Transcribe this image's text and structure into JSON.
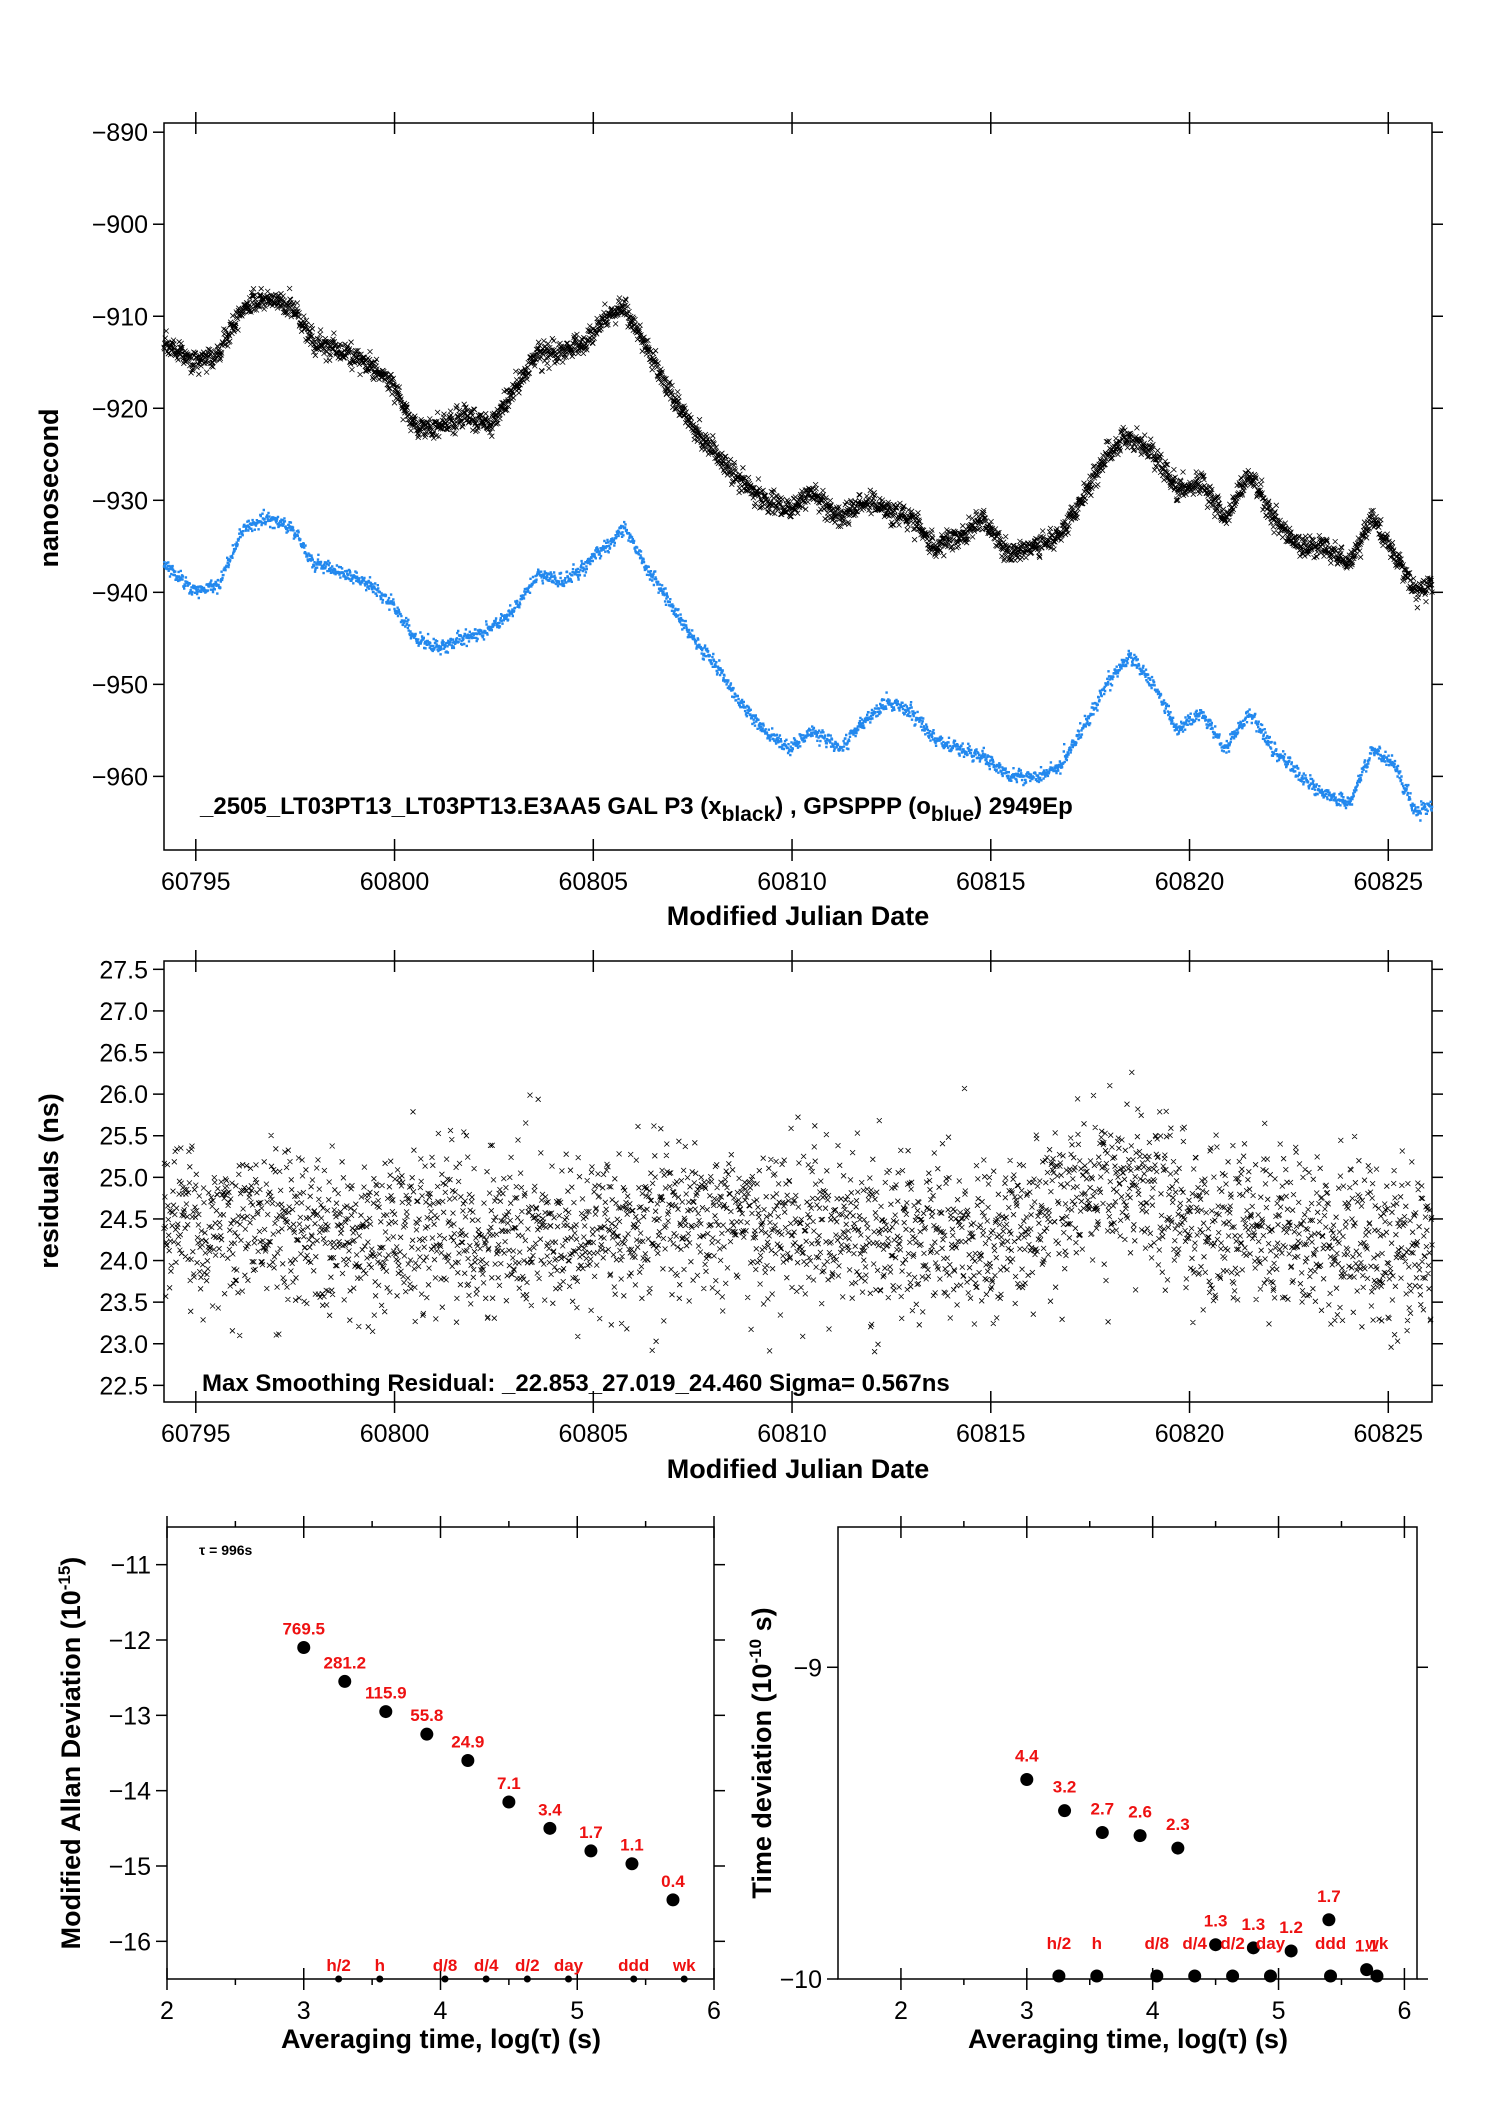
{
  "chart_data": [
    {
      "type": "scatter",
      "xlabel": "Modified Julian Date",
      "ylabel": "nanosecond",
      "xlim": [
        60794.2,
        60826.1
      ],
      "ylim": [
        -968,
        -889
      ],
      "xticks": [
        60795,
        60800,
        60805,
        60810,
        60815,
        60820,
        60825
      ],
      "yticks": [
        -890,
        -900,
        -910,
        -920,
        -930,
        -940,
        -950,
        -960
      ],
      "caption": {
        "prefix": "_2505_LT03PT13_LT03PT13.E3AA5    GAL P3 (x",
        "sub1": "black",
        "mid": ") ,  GPSPPP (o",
        "sub2": "blue",
        "suffix": ")  2949Ep"
      },
      "series": [
        {
          "marker": "x",
          "color": "#000000",
          "x": [
            60794.2,
            60795,
            60795.6,
            60796.2,
            60796.8,
            60797.4,
            60798,
            60798.7,
            60799.3,
            60799.9,
            60800.5,
            60801.1,
            60801.8,
            60802.4,
            60803,
            60803.6,
            60804.2,
            60804.8,
            60805.3,
            60805.8,
            60806.3,
            60806.9,
            60807.5,
            60808.1,
            60808.7,
            60809.3,
            60809.9,
            60810.5,
            60811.2,
            60811.8,
            60812.4,
            60813,
            60813.6,
            60814.2,
            60814.8,
            60815.5,
            60816.1,
            60816.7,
            60817.3,
            60817.9,
            60818.5,
            60819.1,
            60819.7,
            60820.3,
            60820.9,
            60821.5,
            60822.1,
            60822.8,
            60823.4,
            60824,
            60824.6,
            60825.2,
            60825.7,
            60826.1
          ],
          "y": [
            -913,
            -915,
            -914,
            -909,
            -908,
            -909,
            -913,
            -914,
            -915,
            -917,
            -922,
            -922,
            -921,
            -922,
            -918,
            -914,
            -914,
            -913,
            -910,
            -909,
            -913,
            -918,
            -922,
            -925,
            -928,
            -930,
            -931,
            -929,
            -932,
            -930,
            -931,
            -932,
            -935,
            -934,
            -932,
            -936,
            -935,
            -934,
            -930,
            -925,
            -923,
            -925,
            -929,
            -928,
            -932,
            -927,
            -932,
            -935,
            -935,
            -937,
            -932,
            -936,
            -940,
            -939
          ]
        },
        {
          "marker": "o",
          "color": "#2288ee",
          "x": [
            60794.2,
            60795,
            60795.6,
            60796.2,
            60796.8,
            60797.4,
            60798,
            60798.7,
            60799.3,
            60799.9,
            60800.5,
            60801.1,
            60801.8,
            60802.4,
            60803,
            60803.6,
            60804.2,
            60804.8,
            60805.3,
            60805.8,
            60806.3,
            60806.9,
            60807.5,
            60808.1,
            60808.7,
            60809.3,
            60809.9,
            60810.5,
            60811.2,
            60811.8,
            60812.4,
            60813,
            60813.6,
            60814.2,
            60814.8,
            60815.5,
            60816.1,
            60816.7,
            60817.3,
            60817.9,
            60818.5,
            60819.1,
            60819.7,
            60820.3,
            60820.9,
            60821.5,
            60822.1,
            60822.8,
            60823.4,
            60824,
            60824.6,
            60825.2,
            60825.7,
            60826.1
          ],
          "y": [
            -937,
            -940,
            -939,
            -933,
            -932,
            -933,
            -937,
            -938,
            -939,
            -941,
            -945,
            -946,
            -945,
            -944,
            -942,
            -938,
            -939,
            -937,
            -935,
            -933,
            -937,
            -941,
            -945,
            -948,
            -952,
            -955,
            -957,
            -955,
            -957,
            -954,
            -952,
            -953,
            -956,
            -957,
            -958,
            -960,
            -960,
            -959,
            -955,
            -950,
            -947,
            -950,
            -955,
            -953,
            -957,
            -953,
            -957,
            -960,
            -962,
            -963,
            -957,
            -959,
            -964,
            -963
          ]
        }
      ]
    },
    {
      "type": "scatter",
      "xlabel": "Modified Julian Date",
      "ylabel": "residuals (ns)",
      "xlim": [
        60794.2,
        60826.1
      ],
      "ylim": [
        22.3,
        27.6
      ],
      "xticks": [
        60795,
        60800,
        60805,
        60810,
        60815,
        60820,
        60825
      ],
      "yticks": [
        22.5,
        23.0,
        23.5,
        24.0,
        24.5,
        25.0,
        25.5,
        26.0,
        26.5,
        27.0,
        27.5
      ],
      "ytick_labels": [
        "22.5",
        "23.0",
        "23.5",
        "24.0",
        "24.5",
        "25.0",
        "25.5",
        "26.0",
        "26.5",
        "27.0",
        "27.5"
      ],
      "caption": "Max Smoothing Residual: _22.853_27.019_24.460  Sigma= 0.567ns",
      "series": [
        {
          "marker": "x",
          "color": "#000000",
          "n_points": 2949,
          "mean": 24.46,
          "sigma": 0.567,
          "min": 22.853,
          "max": 27.019,
          "max_at": 60818.7
        }
      ]
    },
    {
      "type": "scatter",
      "xlabel": "Averaging time, log(τ) (s)",
      "ylabel": "Modified Allan Deviation (10⁻¹⁵)",
      "ylabel_text": "Modified Allan Deviation (10",
      "ylabel_sup": "-15",
      "ylabel_end": ")",
      "xlim": [
        2,
        6
      ],
      "ylim": [
        -16.5,
        -10.5
      ],
      "xticks": [
        2,
        3,
        4,
        5,
        6
      ],
      "yticks": [
        -11,
        -12,
        -13,
        -14,
        -15,
        -16
      ],
      "annotation": "τ = 996s",
      "x": [
        3.0,
        3.3,
        3.6,
        3.9,
        4.2,
        4.5,
        4.8,
        5.1,
        5.4,
        5.7
      ],
      "y": [
        -12.1,
        -12.55,
        -12.95,
        -13.25,
        -13.6,
        -14.15,
        -14.5,
        -14.8,
        -14.97,
        -15.45
      ],
      "point_labels": [
        "769.5",
        "281.2",
        "115.9",
        "55.8",
        "24.9",
        "7.1",
        "3.4",
        "1.7",
        "1.1",
        "0.4"
      ],
      "reference_x": [
        3.255,
        3.556,
        4.033,
        4.334,
        4.635,
        4.936,
        5.413,
        5.782
      ],
      "reference_labels": [
        "h/2",
        "h",
        "d/8",
        "d/4",
        "d/2",
        "day",
        "ddd",
        "wk"
      ]
    },
    {
      "type": "scatter",
      "xlabel": "Averaging time, log(τ) (s)",
      "ylabel": "Time deviation (10⁻¹⁰ s)",
      "ylabel_text": "Time deviation (10",
      "ylabel_sup": "-10",
      "ylabel_end": " s)",
      "xlim": [
        1.5,
        6.1
      ],
      "ylim": [
        -10.0,
        -8.55
      ],
      "xticks": [
        2,
        3,
        4,
        5,
        6
      ],
      "yticks": [
        -9,
        -10
      ],
      "x": [
        3.0,
        3.3,
        3.6,
        3.9,
        4.2,
        4.5,
        4.8,
        5.1,
        5.4,
        5.7
      ],
      "y": [
        -9.36,
        -9.46,
        -9.53,
        -9.54,
        -9.58,
        -9.89,
        -9.9,
        -9.91,
        -9.81,
        -9.97
      ],
      "point_labels": [
        "4.4",
        "3.2",
        "2.7",
        "2.6",
        "2.3",
        "1.3",
        "1.3",
        "1.2",
        "1.7",
        "1.1"
      ],
      "reference_x": [
        3.255,
        3.556,
        4.033,
        4.334,
        4.635,
        4.936,
        5.413,
        5.782
      ],
      "reference_labels": [
        "h/2",
        "h",
        "d/8",
        "d/4",
        "d/2",
        "day",
        "ddd",
        "wk"
      ]
    }
  ]
}
